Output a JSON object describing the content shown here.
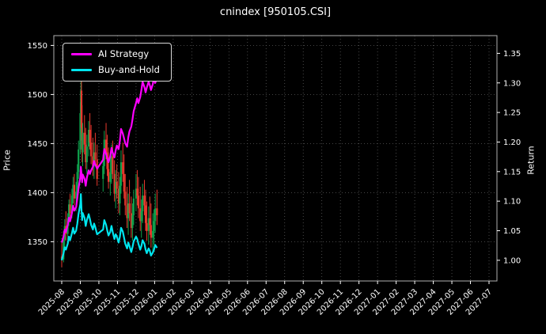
{
  "chart_data": {
    "type": "candlestick+line",
    "title": "cnindex [950105.CSI]",
    "left_axis": {
      "label": "Price",
      "ticks": [
        1350,
        1400,
        1450,
        1500,
        1550
      ],
      "lim": [
        1310,
        1560
      ]
    },
    "right_axis": {
      "label": "Return",
      "ticks": [
        1.0,
        1.05,
        1.1,
        1.15,
        1.2,
        1.25,
        1.3,
        1.35
      ],
      "lim": [
        0.965,
        1.38
      ]
    },
    "x_ticks": [
      "2025-08",
      "2025-09",
      "2025-10",
      "2025-11",
      "2025-12",
      "2026-01",
      "2026-02",
      "2026-03",
      "2026-04",
      "2026-05",
      "2026-06",
      "2026-07",
      "2026-08",
      "2026-09",
      "2026-10",
      "2026-11",
      "2026-12",
      "2027-01",
      "2027-02",
      "2027-03",
      "2027-04",
      "2027-05",
      "2027-06",
      "2027-07"
    ],
    "series": [
      {
        "name": "AI Strategy",
        "color": "#ff00ff"
      },
      {
        "name": "Buy-and-Hold",
        "color": "#00e5ee"
      }
    ],
    "candle_colors": {
      "up": "#0fa14c",
      "down": "#e8392e"
    },
    "colors": {
      "background": "#000000",
      "text": "#ffffff",
      "grid": "#5a5a5a",
      "frame": "#b0b0b0"
    },
    "legend_position": "upper-left",
    "grid": true,
    "rows_schema": [
      "date",
      "open",
      "high",
      "low",
      "close",
      "ai_strategy_return",
      "buy_and_hold_return"
    ],
    "rows": [
      [
        "2025-08-01",
        1335,
        1349,
        1324,
        1332,
        1.03,
        1.0
      ],
      [
        "2025-08-04",
        1332,
        1361,
        1329,
        1352,
        1.04,
        1.012
      ],
      [
        "2025-08-06",
        1352,
        1373,
        1344,
        1366,
        1.052,
        1.022
      ],
      [
        "2025-08-08",
        1366,
        1381,
        1351,
        1358,
        1.048,
        1.018
      ],
      [
        "2025-08-11",
        1358,
        1379,
        1352,
        1374,
        1.06,
        1.028
      ],
      [
        "2025-08-13",
        1374,
        1393,
        1366,
        1388,
        1.072,
        1.04
      ],
      [
        "2025-08-15",
        1388,
        1399,
        1371,
        1379,
        1.066,
        1.034
      ],
      [
        "2025-08-18",
        1379,
        1404,
        1374,
        1397,
        1.08,
        1.046
      ],
      [
        "2025-08-20",
        1397,
        1416,
        1389,
        1408,
        1.092,
        1.055
      ],
      [
        "2025-08-22",
        1408,
        1419,
        1387,
        1394,
        1.084,
        1.045
      ],
      [
        "2025-08-25",
        1394,
        1411,
        1381,
        1401,
        1.09,
        1.05
      ],
      [
        "2025-08-27",
        1401,
        1429,
        1396,
        1421,
        1.105,
        1.062
      ],
      [
        "2025-08-29",
        1421,
        1453,
        1414,
        1444,
        1.122,
        1.078
      ],
      [
        "2025-09-01",
        1444,
        1492,
        1439,
        1481,
        1.14,
        1.095
      ],
      [
        "2025-09-02",
        1481,
        1522,
        1469,
        1504,
        1.158,
        1.112
      ],
      [
        "2025-09-03",
        1504,
        1517,
        1453,
        1466,
        1.146,
        1.085
      ],
      [
        "2025-09-04",
        1466,
        1489,
        1431,
        1441,
        1.132,
        1.068
      ],
      [
        "2025-09-05",
        1441,
        1471,
        1427,
        1461,
        1.145,
        1.08
      ],
      [
        "2025-09-08",
        1461,
        1479,
        1439,
        1449,
        1.138,
        1.072
      ],
      [
        "2025-09-10",
        1449,
        1466,
        1424,
        1431,
        1.126,
        1.058
      ],
      [
        "2025-09-12",
        1431,
        1459,
        1419,
        1447,
        1.14,
        1.068
      ],
      [
        "2025-09-15",
        1447,
        1473,
        1437,
        1464,
        1.152,
        1.078
      ],
      [
        "2025-09-17",
        1464,
        1481,
        1444,
        1451,
        1.146,
        1.07
      ],
      [
        "2025-09-19",
        1451,
        1469,
        1429,
        1437,
        1.152,
        1.06
      ],
      [
        "2025-09-22",
        1437,
        1456,
        1417,
        1427,
        1.158,
        1.052
      ],
      [
        "2025-09-24",
        1427,
        1451,
        1414,
        1441,
        1.168,
        1.062
      ],
      [
        "2025-09-26",
        1441,
        1461,
        1427,
        1434,
        1.162,
        1.056
      ],
      [
        "2025-09-29",
        1434,
        1449,
        1407,
        1414,
        1.155,
        1.044
      ],
      [
        "2025-10-08",
        1414,
        1439,
        1401,
        1427,
        1.17,
        1.052
      ],
      [
        "2025-10-10",
        1427,
        1463,
        1419,
        1454,
        1.188,
        1.068
      ],
      [
        "2025-10-13",
        1454,
        1471,
        1434,
        1441,
        1.18,
        1.06
      ],
      [
        "2025-10-15",
        1441,
        1459,
        1417,
        1424,
        1.172,
        1.05
      ],
      [
        "2025-10-17",
        1424,
        1446,
        1404,
        1411,
        1.166,
        1.042
      ],
      [
        "2025-10-20",
        1411,
        1436,
        1397,
        1421,
        1.176,
        1.048
      ],
      [
        "2025-10-22",
        1421,
        1449,
        1409,
        1437,
        1.19,
        1.058
      ],
      [
        "2025-10-24",
        1437,
        1453,
        1414,
        1419,
        1.182,
        1.048
      ],
      [
        "2025-10-27",
        1419,
        1433,
        1391,
        1399,
        1.174,
        1.036
      ],
      [
        "2025-10-29",
        1399,
        1423,
        1384,
        1411,
        1.186,
        1.044
      ],
      [
        "2025-10-31",
        1411,
        1429,
        1394,
        1404,
        1.194,
        1.04
      ],
      [
        "2025-11-03",
        1404,
        1421,
        1379,
        1389,
        1.188,
        1.03
      ],
      [
        "2025-11-05",
        1389,
        1416,
        1377,
        1407,
        1.202,
        1.04
      ],
      [
        "2025-11-07",
        1407,
        1443,
        1399,
        1431,
        1.222,
        1.055
      ],
      [
        "2025-11-10",
        1431,
        1451,
        1411,
        1419,
        1.214,
        1.048
      ],
      [
        "2025-11-12",
        1419,
        1439,
        1394,
        1401,
        1.206,
        1.038
      ],
      [
        "2025-11-14",
        1401,
        1419,
        1377,
        1387,
        1.198,
        1.028
      ],
      [
        "2025-11-17",
        1387,
        1406,
        1364,
        1374,
        1.192,
        1.02
      ],
      [
        "2025-11-19",
        1374,
        1399,
        1357,
        1389,
        1.208,
        1.03
      ],
      [
        "2025-11-21",
        1389,
        1413,
        1371,
        1379,
        1.218,
        1.024
      ],
      [
        "2025-11-24",
        1379,
        1396,
        1354,
        1364,
        1.226,
        1.014
      ],
      [
        "2025-11-26",
        1364,
        1389,
        1351,
        1377,
        1.238,
        1.022
      ],
      [
        "2025-11-28",
        1377,
        1403,
        1367,
        1394,
        1.252,
        1.032
      ],
      [
        "2025-12-01",
        1394,
        1419,
        1381,
        1404,
        1.266,
        1.04
      ],
      [
        "2025-12-03",
        1404,
        1423,
        1387,
        1397,
        1.274,
        1.036
      ],
      [
        "2025-12-05",
        1397,
        1416,
        1374,
        1384,
        1.266,
        1.028
      ],
      [
        "2025-12-08",
        1384,
        1406,
        1361,
        1371,
        1.276,
        1.018
      ],
      [
        "2025-12-10",
        1371,
        1393,
        1354,
        1381,
        1.288,
        1.024
      ],
      [
        "2025-12-12",
        1381,
        1409,
        1369,
        1397,
        1.302,
        1.034
      ],
      [
        "2025-12-15",
        1397,
        1413,
        1377,
        1387,
        1.293,
        1.028
      ],
      [
        "2025-12-17",
        1387,
        1403,
        1361,
        1369,
        1.284,
        1.018
      ],
      [
        "2025-12-19",
        1369,
        1391,
        1351,
        1361,
        1.292,
        1.012
      ],
      [
        "2025-12-22",
        1361,
        1386,
        1347,
        1374,
        1.302,
        1.02
      ],
      [
        "2025-12-24",
        1374,
        1396,
        1357,
        1367,
        1.296,
        1.016
      ],
      [
        "2025-12-26",
        1367,
        1389,
        1344,
        1354,
        1.288,
        1.008
      ],
      [
        "2025-12-29",
        1354,
        1379,
        1339,
        1361,
        1.298,
        1.013
      ],
      [
        "2025-12-31",
        1361,
        1383,
        1347,
        1371,
        1.31,
        1.018
      ],
      [
        "2026-01-02",
        1371,
        1399,
        1359,
        1384,
        1.3,
        1.026
      ],
      [
        "2026-01-05",
        1384,
        1403,
        1367,
        1377,
        1.308,
        1.021
      ]
    ]
  }
}
